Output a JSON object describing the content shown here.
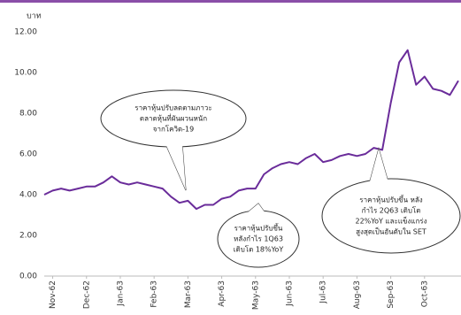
{
  "chart_data": {
    "type": "line",
    "y_unit": "บาท",
    "x": [
      0,
      1,
      2,
      3,
      4,
      5,
      6,
      7,
      8,
      9,
      10,
      11,
      12,
      13,
      14,
      15,
      16,
      17,
      18,
      19,
      20,
      21,
      22,
      23,
      24,
      25,
      26,
      27,
      28,
      29,
      30,
      31,
      32,
      33,
      34,
      35,
      36,
      37,
      38,
      39,
      40,
      41,
      42,
      43,
      44,
      45,
      46,
      47,
      48,
      49
    ],
    "series": [
      {
        "color": "#6a2c9a",
        "values": [
          4.0,
          4.2,
          4.3,
          4.2,
          4.3,
          4.4,
          4.4,
          4.6,
          4.9,
          4.6,
          4.5,
          4.6,
          4.5,
          4.4,
          4.3,
          3.9,
          3.6,
          3.7,
          3.3,
          3.5,
          3.5,
          3.8,
          3.9,
          4.2,
          4.3,
          4.3,
          5.0,
          5.3,
          5.5,
          5.6,
          5.5,
          5.8,
          6.0,
          5.6,
          5.7,
          5.9,
          6.0,
          5.9,
          6.0,
          6.3,
          6.2,
          8.5,
          10.5,
          11.1,
          9.4,
          9.8,
          9.2,
          9.1,
          8.9,
          9.6
        ]
      }
    ],
    "xlim": [
      0,
      49
    ],
    "xticks": [
      {
        "value": 1,
        "label": "Nov-62"
      },
      {
        "value": 5,
        "label": "Dec-62"
      },
      {
        "value": 9,
        "label": "Jan-63"
      },
      {
        "value": 13,
        "label": "Feb-63"
      },
      {
        "value": 17,
        "label": "Mar-63"
      },
      {
        "value": 21,
        "label": "Apr-63"
      },
      {
        "value": 25,
        "label": "May-63"
      },
      {
        "value": 29,
        "label": "Jun-63"
      },
      {
        "value": 33,
        "label": "Jul-63"
      },
      {
        "value": 37,
        "label": "Aug-63"
      },
      {
        "value": 41,
        "label": "Sep-63"
      },
      {
        "value": 45,
        "label": "Oct-63"
      }
    ],
    "ylim": [
      0,
      12
    ],
    "yticks": [
      {
        "value": 0,
        "label": "0.00"
      },
      {
        "value": 2,
        "label": "2.00"
      },
      {
        "value": 4,
        "label": "4.00"
      },
      {
        "value": 6,
        "label": "6.00"
      },
      {
        "value": 8,
        "label": "8.00"
      },
      {
        "value": 10,
        "label": "10.00"
      },
      {
        "value": 12,
        "label": "12.00"
      }
    ],
    "grid": false,
    "annotations": [
      {
        "lines": [
          "ราคาหุ้นปรับลดตามภาวะ",
          "ตลาดหุ้นที่ผันผวนหนัก",
          "จากโควิด-19"
        ]
      },
      {
        "lines": [
          "ราคาหุ้นปรับขึ้น",
          "หลังกำไร 1Q63",
          "เติบโต 18%YoY"
        ]
      },
      {
        "lines": [
          "ราคาหุ้นปรับขึ้น หลัง",
          "กำไร 2Q63 เติบโต",
          "22%YoY และแข็งแกร่ง",
          "สูงสุดเป็นอันดับใน SET"
        ]
      }
    ]
  }
}
